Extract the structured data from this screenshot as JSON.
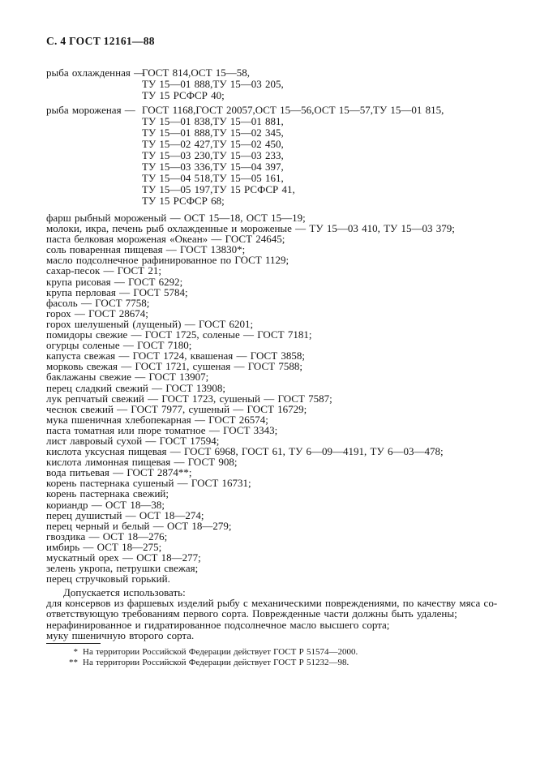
{
  "colors": {
    "background": "#ffffff",
    "text": "#151515"
  },
  "page_header": "С. 4 ГОСТ 12161—88",
  "ref_groups": [
    {
      "label": "рыба охлажденная —",
      "refs": [
        "ГОСТ 814,ОСТ 15—58,",
        "ТУ 15—01 888,ТУ 15—03 205,",
        "ТУ 15 РСФСР 40;"
      ]
    },
    {
      "label": "рыба мороженая —",
      "refs": [
        "ГОСТ 1168,ГОСТ 20057,ОСТ 15—56,ОСТ 15—57,ТУ 15—01 815,",
        "ТУ 15—01 838,ТУ 15—01 881,",
        "ТУ 15—01 888,ТУ 15—02 345,",
        "ТУ 15—02 427,ТУ 15—02 450,",
        "ТУ 15—03 230,ТУ 15—03 233,",
        "ТУ 15—03 336,ТУ 15—04 397,",
        "ТУ 15—04 518,ТУ 15—05 161,",
        "ТУ 15—05 197,ТУ 15 РСФСР 41,",
        "ТУ 15 РСФСР 68;"
      ]
    }
  ],
  "items": [
    "фарш рыбный мороженый — ОСТ 15—18, ОСТ 15—19;",
    "молоки, икра, печень рыб охлажденные и мороженые — ТУ 15—03 410, ТУ 15—03 379;",
    "паста белковая мороженая «Океан» — ГОСТ 24645;",
    "соль поваренная пищевая — ГОСТ 13830*;",
    "масло подсолнечное рафинированное по ГОСТ 1129;",
    "сахар-песок — ГОСТ 21;",
    "крупа рисовая — ГОСТ 6292;",
    "крупа перловая — ГОСТ 5784;",
    "фасоль — ГОСТ 7758;",
    "горох — ГОСТ 28674;",
    "горох шелушеный (лущеный) — ГОСТ 6201;",
    "помидоры свежие — ГОСТ 1725, соленые — ГОСТ 7181;",
    "огурцы соленые — ГОСТ 7180;",
    "капуста свежая — ГОСТ 1724, квашеная — ГОСТ 3858;",
    "морковь свежая — ГОСТ 1721, сушеная — ГОСТ 7588;",
    "баклажаны свежие — ГОСТ 13907;",
    "перец сладкий свежий — ГОСТ 13908;",
    "лук репчатый свежий — ГОСТ 1723, сушеный — ГОСТ 7587;",
    "чеснок свежий — ГОСТ 7977, сушеный — ГОСТ 16729;",
    "мука пшеничная хлебопекарная — ГОСТ 26574;",
    "паста томатная или пюре томатное — ГОСТ 3343;",
    "лист лавровый сухой — ГОСТ 17594;",
    "кислота уксусная пищевая — ГОСТ 6968, ГОСТ 61, ТУ 6—09—4191, ТУ 6—03—478;",
    "кислота лимонная пищевая — ГОСТ 908;",
    "вода питьевая — ГОСТ 2874**;",
    "корень пастернака сушеный — ГОСТ 16731;",
    "корень пастернака свежий;",
    "кориандр — ОСТ 18—38;",
    "перец душистый — ОСТ 18—274;",
    "перец черный и белый — ОСТ 18—279;",
    "гвоздика — ОСТ 18—276;",
    "имбирь — ОСТ 18—275;",
    "мускатный орех — ОСТ 18—277;",
    "зелень укропа, петрушки свежая;",
    "перец стручковый горький."
  ],
  "allowed": {
    "intro": "Допускается использовать:",
    "lines": [
      "для консервов из фаршевых изделий рыбу с механическими повреждениями, по качеству мяса со-",
      "ответствующую требованиям первого сорта. Поврежденные части должны быть удалены;",
      "нерафинированное и гидратированное подсолнечное масло высшего сорта;",
      "муку пшеничную второго сорта."
    ]
  },
  "footnotes": [
    {
      "marker": "*",
      "text": "На территории Российской Федерации действует ГОСТ Р 51574—2000."
    },
    {
      "marker": "**",
      "text": "На территории Российской Федерации действует ГОСТ Р 51232—98."
    }
  ]
}
